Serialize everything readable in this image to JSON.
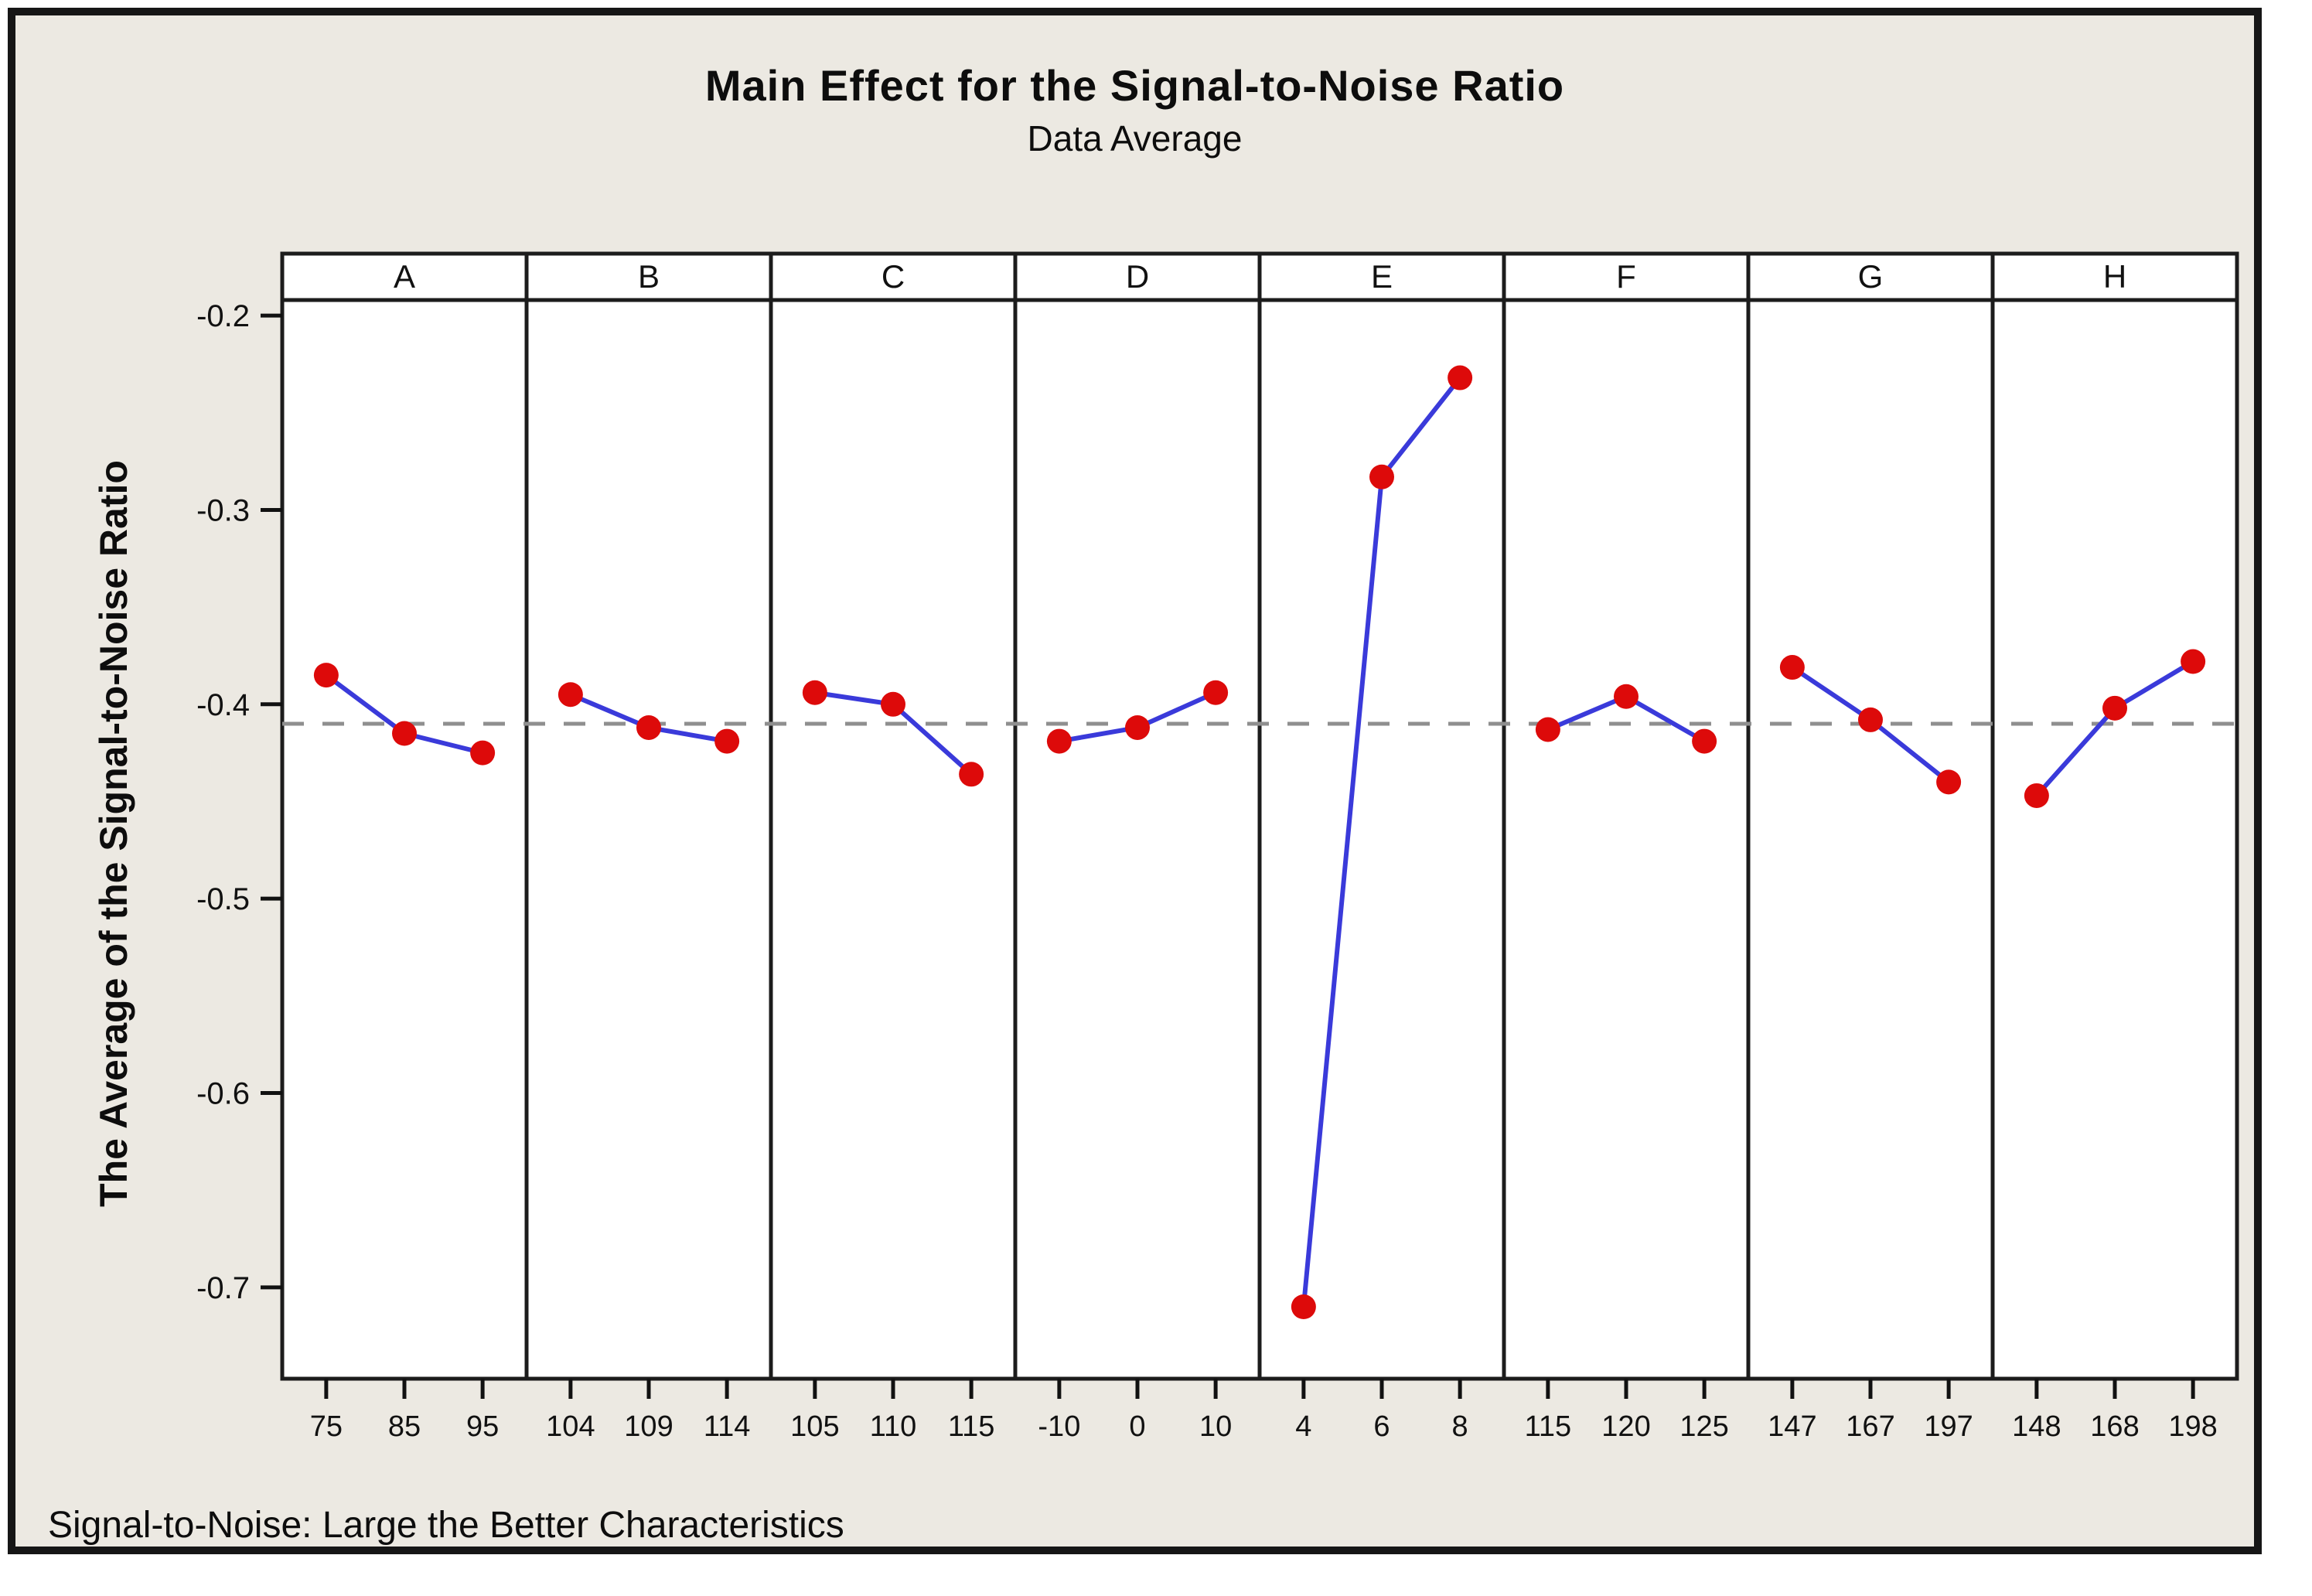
{
  "chart_data": {
    "type": "line",
    "title": "Main Effect for the Signal-to-Noise Ratio",
    "subtitle": "Data Average",
    "ylabel": "The Average of the Signal-to-Noise Ratio",
    "footer_note": "Signal-to-Noise: Large the Better Characteristics",
    "grid": false,
    "legend_position": "none",
    "ylim": [
      -0.747,
      -0.192
    ],
    "yticks": [
      -0.2,
      -0.3,
      -0.4,
      -0.5,
      -0.6,
      -0.7
    ],
    "ytick_labels": [
      "-0.2",
      "-0.3",
      "-0.4",
      "-0.5",
      "-0.6",
      "-0.7"
    ],
    "grand_mean_reference": -0.41,
    "panels": [
      {
        "factor": "A",
        "levels": [
          "75",
          "85",
          "95"
        ],
        "values": [
          -0.385,
          -0.415,
          -0.425
        ]
      },
      {
        "factor": "B",
        "levels": [
          "104",
          "109",
          "114"
        ],
        "values": [
          -0.395,
          -0.412,
          -0.419
        ]
      },
      {
        "factor": "C",
        "levels": [
          "105",
          "110",
          "115"
        ],
        "values": [
          -0.394,
          -0.4,
          -0.436
        ]
      },
      {
        "factor": "D",
        "levels": [
          "-10",
          "0",
          "10"
        ],
        "values": [
          -0.419,
          -0.412,
          -0.394
        ]
      },
      {
        "factor": "E",
        "levels": [
          "4",
          "6",
          "8"
        ],
        "values": [
          -0.71,
          -0.283,
          -0.232
        ]
      },
      {
        "factor": "F",
        "levels": [
          "115",
          "120",
          "125"
        ],
        "values": [
          -0.413,
          -0.396,
          -0.419
        ]
      },
      {
        "factor": "G",
        "levels": [
          "147",
          "167",
          "197"
        ],
        "values": [
          -0.381,
          -0.408,
          -0.44
        ]
      },
      {
        "factor": "H",
        "levels": [
          "148",
          "168",
          "198"
        ],
        "values": [
          -0.447,
          -0.402,
          -0.378
        ]
      }
    ],
    "colors": {
      "marker": "#dd0a0a",
      "line": "#3a3ada",
      "reference_line": "#8f8f8f",
      "panel_border": "#1c1c1c",
      "axis": "#111111",
      "background": "#ece9e2",
      "plot_background": "#ffffff"
    }
  }
}
